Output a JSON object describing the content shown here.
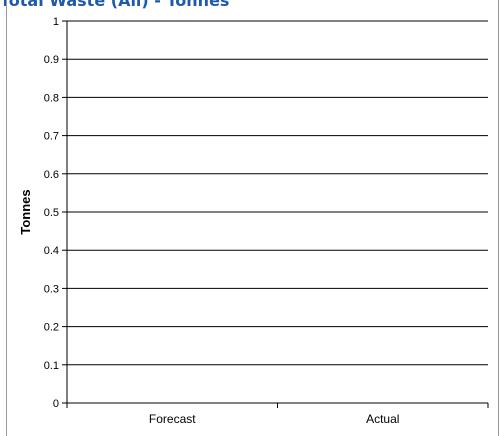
{
  "chart_data": {
    "type": "bar",
    "title": "Total Waste (All) - Tonnes",
    "xlabel": "",
    "ylabel": "Tonnes",
    "categories": [
      "Forecast",
      "Actual"
    ],
    "values": [
      0,
      0
    ],
    "ylim": [
      0,
      1
    ],
    "yticks": [
      0,
      0.1,
      0.2,
      0.3,
      0.4,
      0.5,
      0.6,
      0.7,
      0.8,
      0.9,
      1
    ],
    "grid": true,
    "legend": "none",
    "colors": {
      "title": "#1f5aa8",
      "gridline": "#000000",
      "axis": "#000000",
      "frame": "#9a9a9a"
    }
  }
}
